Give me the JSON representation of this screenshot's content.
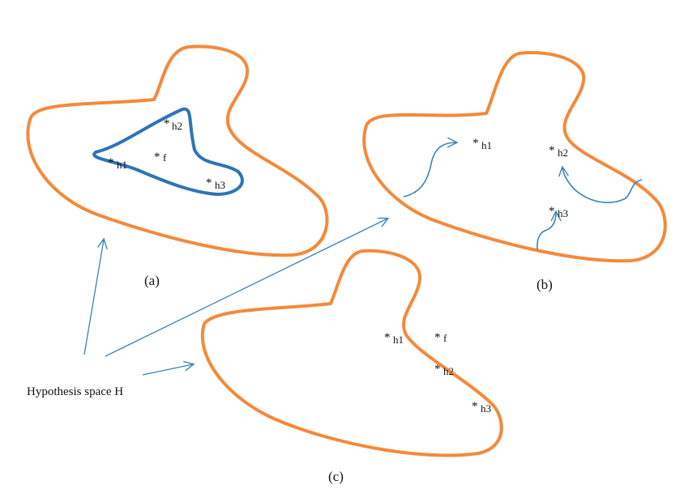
{
  "caption": "Hypothesis space H",
  "colors": {
    "space_outline": "#F4893B",
    "subset_outline": "#2E74B5",
    "arrows": "#3C82B8"
  },
  "panels": {
    "a": {
      "label": "(a)",
      "points": {
        "h1": "h1",
        "h2": "h2",
        "h3": "h3",
        "f": "f"
      }
    },
    "b": {
      "label": "(b)",
      "points": {
        "h1": "h1",
        "h2": "h2",
        "h3": "h3"
      }
    },
    "c": {
      "label": "(c)",
      "points": {
        "h1": "h1",
        "h2": "h2",
        "h3": "h3",
        "f": "f"
      }
    }
  },
  "marker": "*"
}
